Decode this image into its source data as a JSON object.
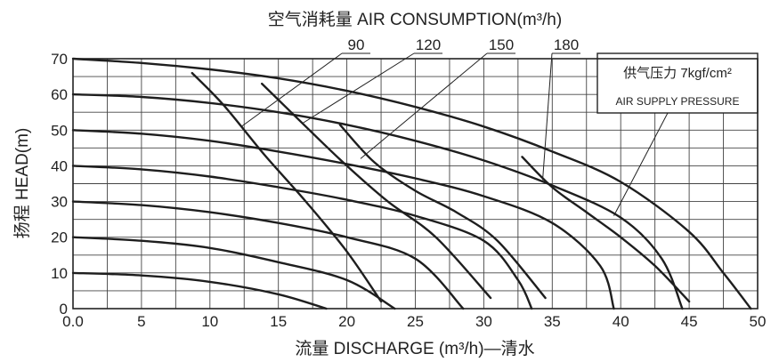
{
  "chart_data": {
    "type": "line",
    "title": "空气消耗量 AIR CONSUMPTION(m³/h)",
    "xlabel": "流量 DISCHARGE (m³/h)—清水",
    "ylabel": "扬程 HEAD(m)",
    "xlim": [
      0,
      50
    ],
    "ylim": [
      0,
      70
    ],
    "x_ticks": [
      "0.0",
      "5",
      "10",
      "15",
      "20",
      "25",
      "30",
      "35",
      "40",
      "45",
      "50"
    ],
    "y_ticks": [
      "0",
      "10",
      "20",
      "30",
      "40",
      "50",
      "60",
      "70"
    ],
    "grid": true,
    "legend": {
      "title": "供气压力 7kgf/cm²",
      "subtitle": "AIR SUPPLY PRESSURE",
      "placement": "top-right"
    },
    "series": [
      {
        "group": "pressure",
        "points": [
          [
            0,
            10
          ],
          [
            5,
            9.3
          ],
          [
            10,
            7.5
          ],
          [
            15,
            4
          ],
          [
            18.5,
            0
          ]
        ]
      },
      {
        "group": "pressure",
        "points": [
          [
            0,
            20
          ],
          [
            5,
            19
          ],
          [
            10,
            17
          ],
          [
            15,
            13
          ],
          [
            20,
            8
          ],
          [
            23.5,
            0
          ]
        ]
      },
      {
        "group": "pressure",
        "points": [
          [
            0,
            30
          ],
          [
            5,
            29
          ],
          [
            10,
            27
          ],
          [
            15,
            24
          ],
          [
            20,
            20
          ],
          [
            25,
            14
          ],
          [
            28.5,
            0
          ]
        ]
      },
      {
        "group": "pressure",
        "points": [
          [
            0,
            40
          ],
          [
            5,
            39
          ],
          [
            10,
            37
          ],
          [
            15,
            34
          ],
          [
            20,
            30.5
          ],
          [
            25,
            26
          ],
          [
            30,
            19
          ],
          [
            32.5,
            8
          ],
          [
            33.5,
            0
          ]
        ]
      },
      {
        "group": "pressure",
        "points": [
          [
            0,
            50
          ],
          [
            5,
            49
          ],
          [
            10,
            47
          ],
          [
            15,
            44
          ],
          [
            20,
            40.5
          ],
          [
            25,
            36.5
          ],
          [
            30,
            31.5
          ],
          [
            35,
            24
          ],
          [
            38.5,
            12
          ],
          [
            39.5,
            0
          ]
        ]
      },
      {
        "group": "pressure",
        "points": [
          [
            0,
            60
          ],
          [
            5,
            59.3
          ],
          [
            10,
            57.6
          ],
          [
            15,
            55
          ],
          [
            20,
            51.5
          ],
          [
            25,
            47
          ],
          [
            30,
            41.5
          ],
          [
            35,
            34.5
          ],
          [
            40,
            25.5
          ],
          [
            43,
            14
          ],
          [
            44.5,
            0
          ]
        ]
      },
      {
        "group": "pressure",
        "points": [
          [
            0,
            70
          ],
          [
            5,
            68.8
          ],
          [
            10,
            67
          ],
          [
            15,
            64.5
          ],
          [
            20,
            61
          ],
          [
            25,
            56.5
          ],
          [
            30,
            51
          ],
          [
            35,
            44
          ],
          [
            40,
            35.5
          ],
          [
            45,
            21.5
          ],
          [
            47.5,
            10
          ],
          [
            49.5,
            0
          ]
        ]
      },
      {
        "group": "air",
        "name": "90",
        "points": [
          [
            8.7,
            66
          ],
          [
            11,
            57
          ],
          [
            14,
            43
          ],
          [
            17,
            30
          ],
          [
            20,
            16
          ],
          [
            22.5,
            2
          ]
        ]
      },
      {
        "group": "air",
        "name": "120",
        "points": [
          [
            13.8,
            63
          ],
          [
            17,
            51
          ],
          [
            20,
            40
          ],
          [
            23,
            30
          ],
          [
            26.5,
            20
          ],
          [
            30.5,
            3
          ]
        ]
      },
      {
        "group": "air",
        "name": "150",
        "points": [
          [
            19.5,
            51.5
          ],
          [
            22,
            41
          ],
          [
            25,
            33
          ],
          [
            28,
            27
          ],
          [
            31,
            19
          ],
          [
            34.5,
            3
          ]
        ]
      },
      {
        "group": "air",
        "name": "180",
        "points": [
          [
            32.8,
            42.5
          ],
          [
            35,
            34
          ],
          [
            37.5,
            27
          ],
          [
            40,
            20
          ],
          [
            42.5,
            12
          ],
          [
            45,
            2
          ]
        ]
      }
    ]
  }
}
